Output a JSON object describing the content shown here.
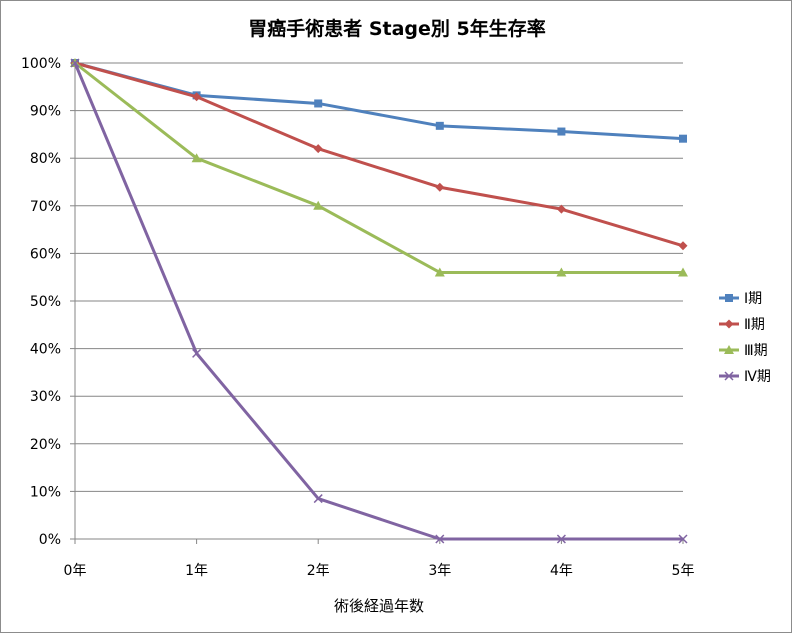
{
  "chart_data": {
    "type": "line",
    "title": "胃癌手術患者 Stage別 5年生存率",
    "xlabel": "術後経過年数",
    "ylabel": "",
    "categories": [
      "0年",
      "1年",
      "2年",
      "3年",
      "4年",
      "5年"
    ],
    "ylim": [
      0,
      100
    ],
    "yticks": [
      "0%",
      "10%",
      "20%",
      "30%",
      "40%",
      "50%",
      "60%",
      "70%",
      "80%",
      "90%",
      "100%"
    ],
    "grid": true,
    "legend_position": "right",
    "series": [
      {
        "name": "Ⅰ期",
        "color": "#4f81bd",
        "marker": "square",
        "values": [
          100,
          93.2,
          91.5,
          86.8,
          85.6,
          84.1
        ]
      },
      {
        "name": "Ⅱ期",
        "color": "#c0504d",
        "marker": "diamond",
        "values": [
          100,
          92.9,
          82.0,
          73.9,
          69.3,
          61.6
        ]
      },
      {
        "name": "Ⅲ期",
        "color": "#9bbb59",
        "marker": "triangle",
        "values": [
          100,
          80.0,
          70.0,
          56.0,
          56.0,
          56.0
        ]
      },
      {
        "name": "Ⅳ期",
        "color": "#8064a2",
        "marker": "x",
        "values": [
          100,
          39.0,
          8.5,
          0,
          0,
          0
        ]
      }
    ]
  }
}
